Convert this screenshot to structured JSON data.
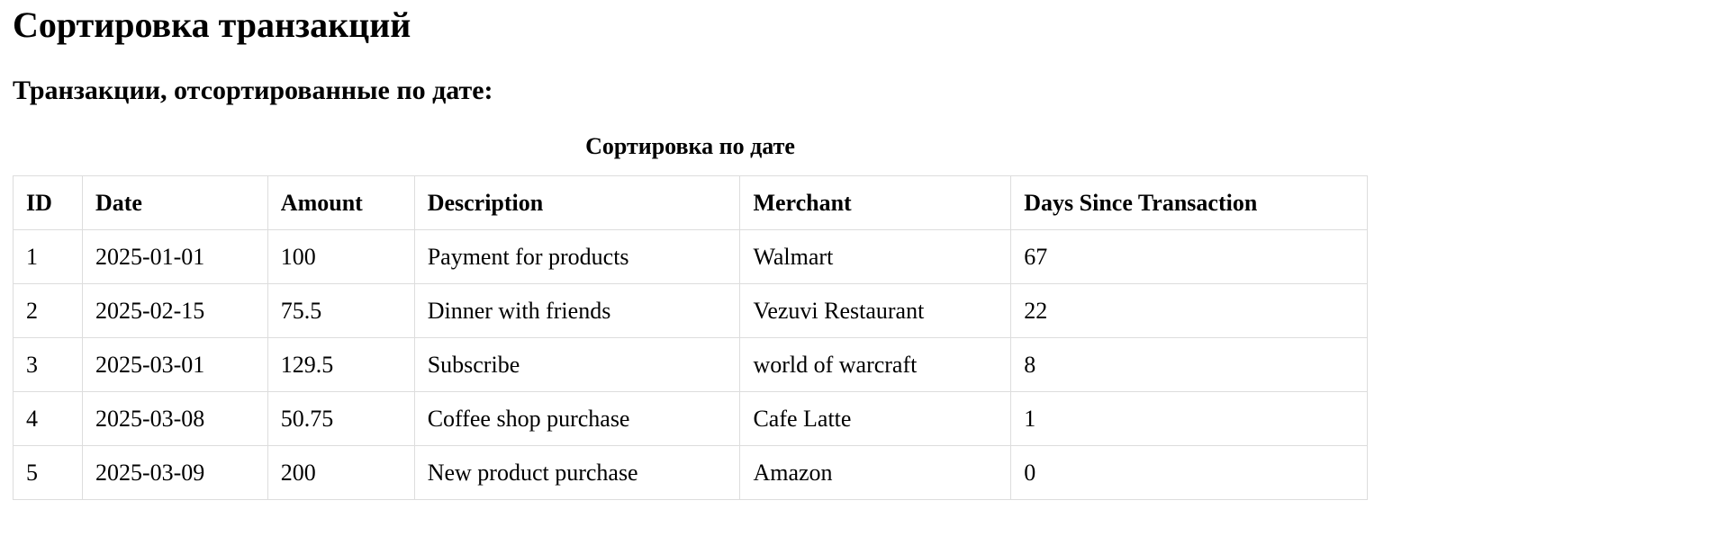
{
  "page": {
    "title": "Сортировка транзакций",
    "subtitle": "Транзакции, отсортированные по дате:"
  },
  "table": {
    "caption": "Сортировка по дате",
    "headers": [
      "ID",
      "Date",
      "Amount",
      "Description",
      "Merchant",
      "Days Since Transaction"
    ],
    "rows": [
      [
        "1",
        "2025-01-01",
        "100",
        "Payment for products",
        "Walmart",
        "67"
      ],
      [
        "2",
        "2025-02-15",
        "75.5",
        "Dinner with friends",
        "Vezuvi Restaurant",
        "22"
      ],
      [
        "3",
        "2025-03-01",
        "129.5",
        "Subscribe",
        "world of warcraft",
        "8"
      ],
      [
        "4",
        "2025-03-08",
        "50.75",
        "Coffee shop purchase",
        "Cafe Latte",
        "1"
      ],
      [
        "5",
        "2025-03-09",
        "200",
        "New product purchase",
        "Amazon",
        "0"
      ]
    ]
  }
}
